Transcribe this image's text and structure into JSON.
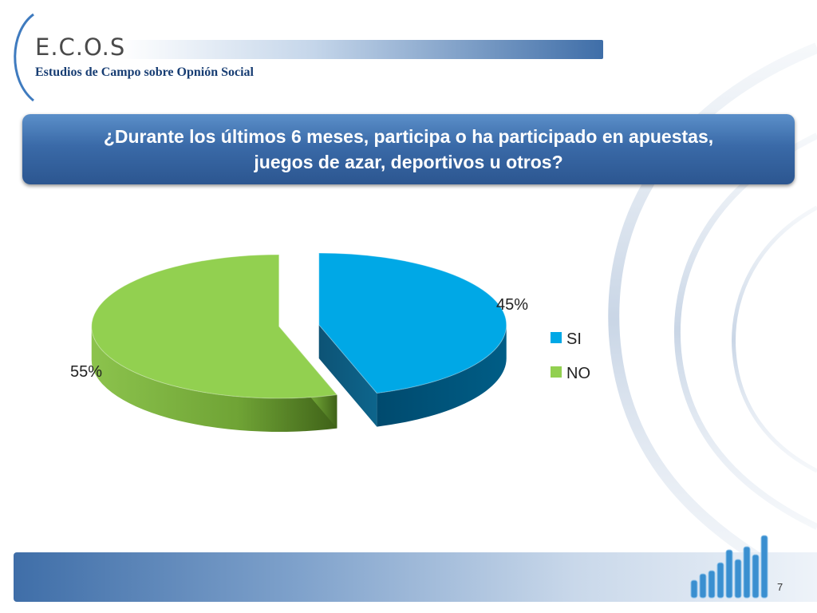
{
  "logo": {
    "name": "E.C.O.S",
    "subtitle": "Estudios de Campo sobre Opnión Social"
  },
  "slide": {
    "title": "¿Durante los últimos 6 meses, participa o ha participado en apuestas, juegos de azar, deportivos u otros?",
    "page_number": "7"
  },
  "colors": {
    "si": "#00a8e6",
    "no": "#92d050",
    "title_bg": "#3a6aa8"
  },
  "chart_data": {
    "type": "pie",
    "categories": [
      "SI",
      "NO"
    ],
    "values": [
      45,
      55
    ],
    "labels": [
      "45%",
      "55%"
    ],
    "colors": [
      "#00a8e6",
      "#92d050"
    ],
    "exploded": true,
    "style": "3d",
    "legend": "right"
  }
}
